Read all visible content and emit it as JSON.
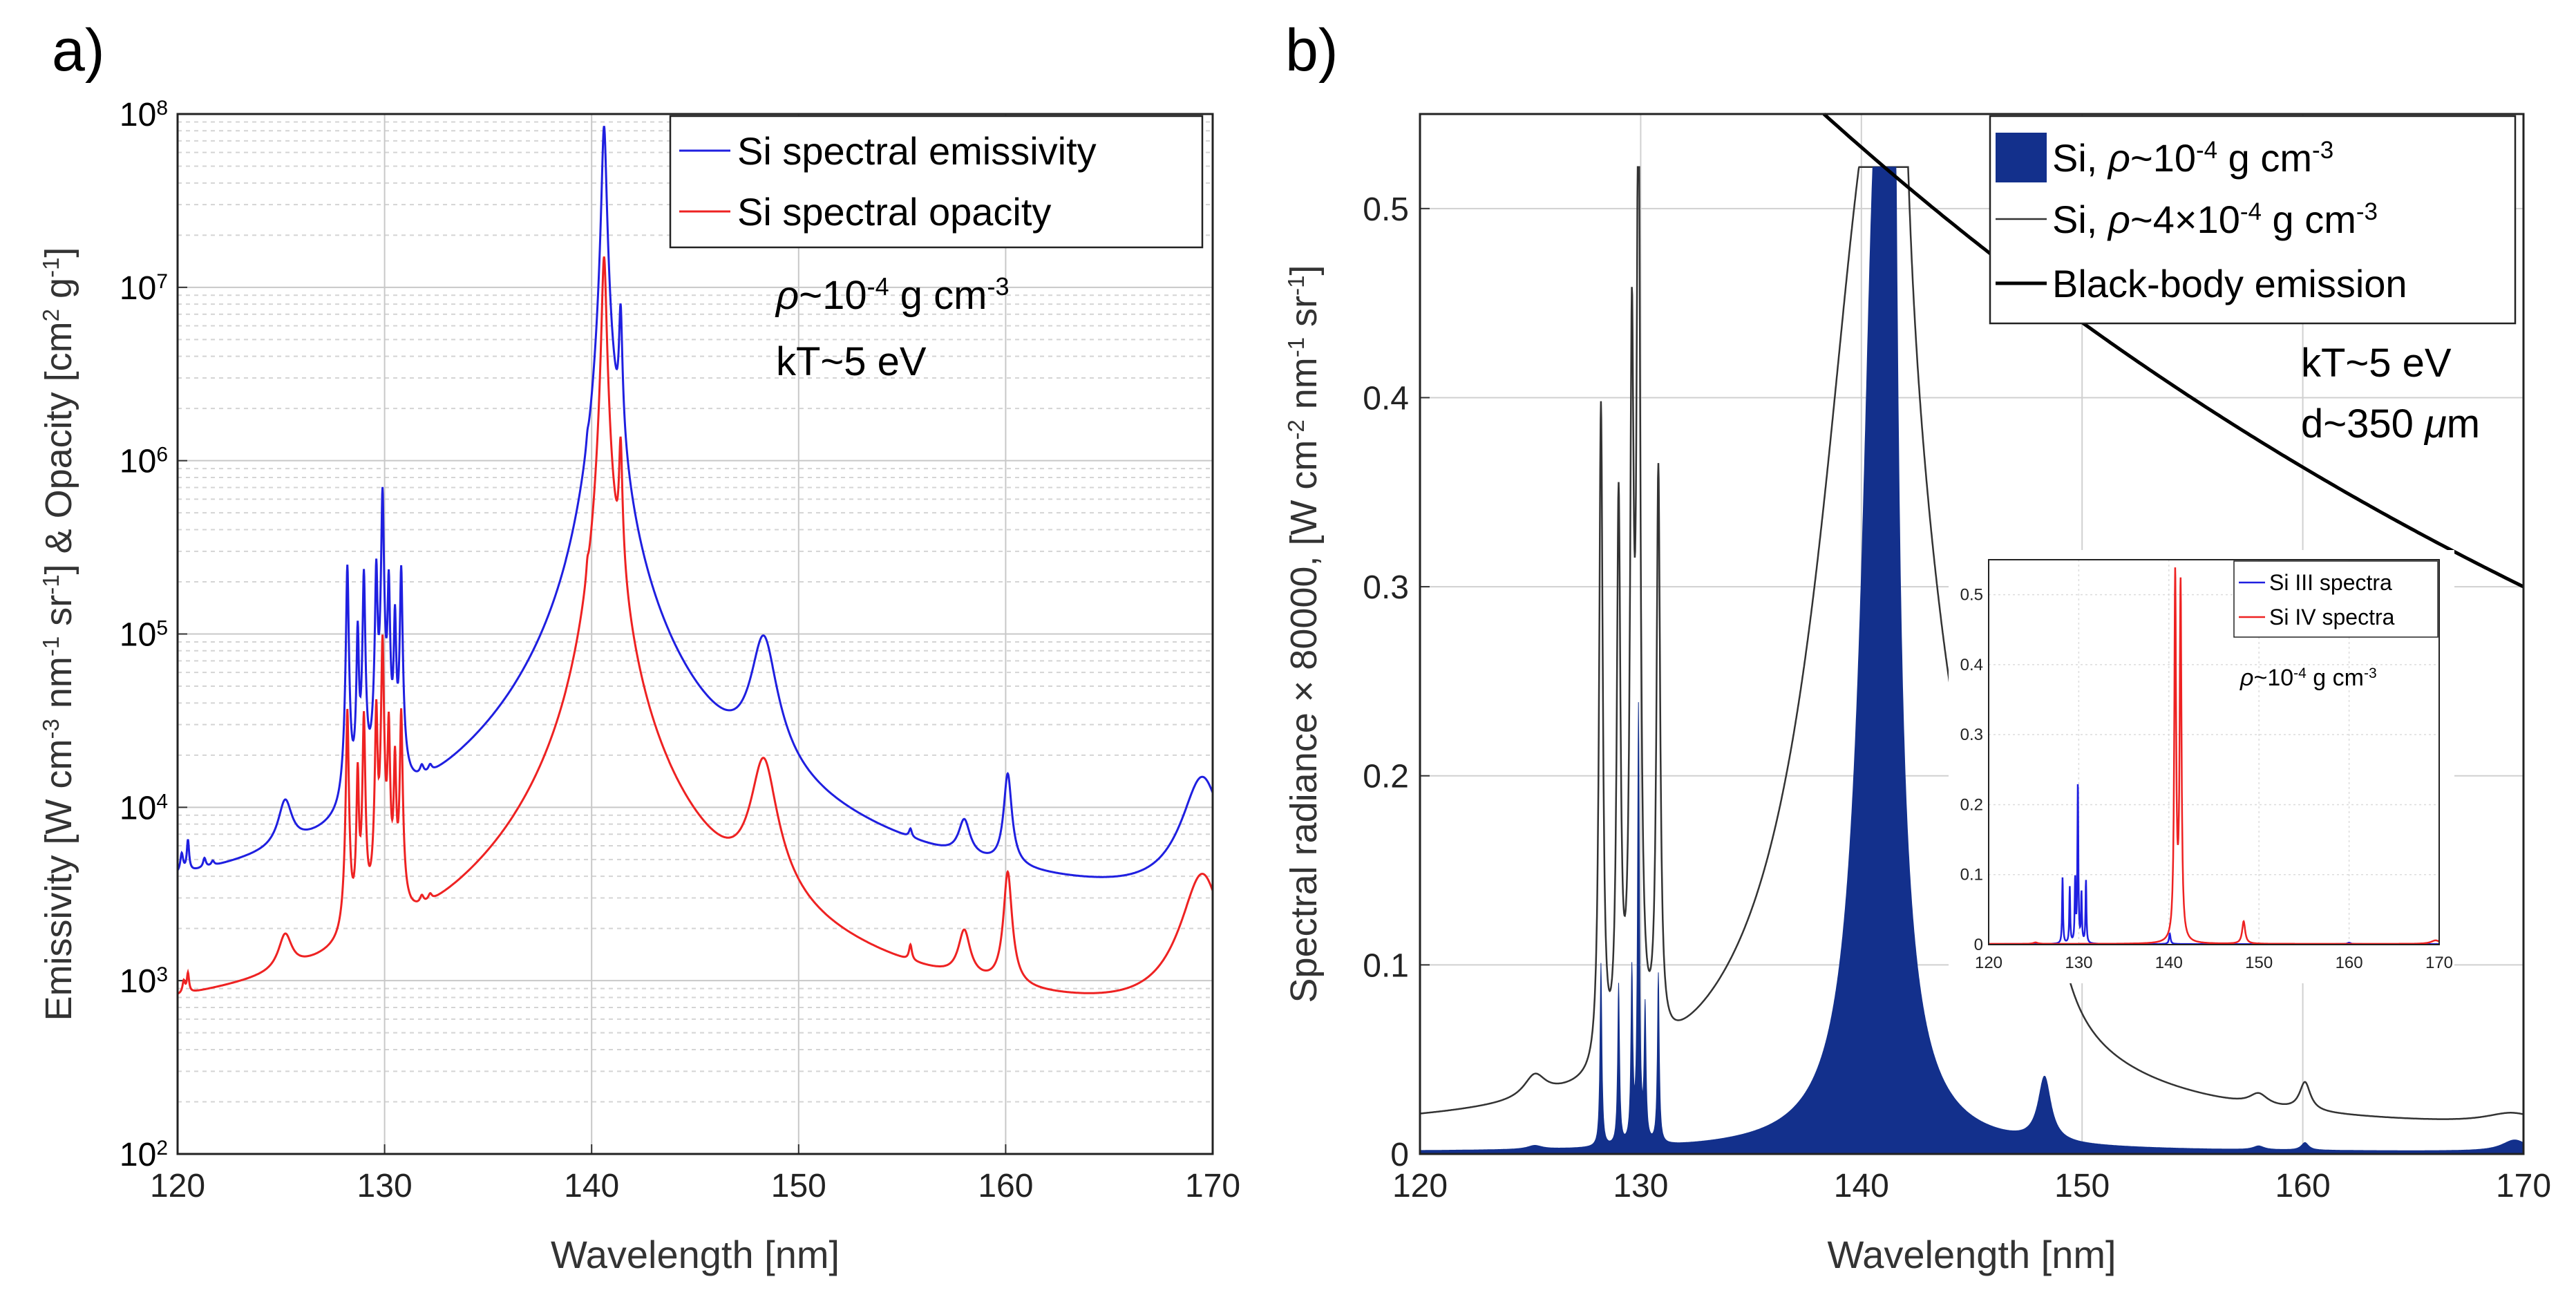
{
  "panels": {
    "a": {
      "label": "a)"
    },
    "b": {
      "label": "b)"
    }
  },
  "chart_data": [
    {
      "type": "line",
      "panel": "a",
      "yscale": "log",
      "xlabel": "Wavelength [nm]",
      "ylabel": {
        "main": "Emissivity [W cm",
        "parts": [
          {
            "t": "Emissivity [W cm"
          },
          {
            "t": "-3",
            "sup": true
          },
          {
            "t": " nm"
          },
          {
            "t": "-1",
            "sup": true
          },
          {
            "t": " sr"
          },
          {
            "t": "-1",
            "sup": true
          },
          {
            "t": "] & Opacity [cm"
          },
          {
            "t": "2",
            "sup": true
          },
          {
            "t": " g"
          },
          {
            "t": "-1",
            "sup": true
          },
          {
            "t": "]"
          }
        ]
      },
      "xlim": [
        120,
        170
      ],
      "ylim": [
        100,
        100000000
      ],
      "xticks": [
        120,
        130,
        140,
        150,
        160,
        170
      ],
      "yticks": [
        {
          "base": "10",
          "exp": "2",
          "value": 100
        },
        {
          "base": "10",
          "exp": "3",
          "value": 1000
        },
        {
          "base": "10",
          "exp": "4",
          "value": 10000
        },
        {
          "base": "10",
          "exp": "5",
          "value": 100000
        },
        {
          "base": "10",
          "exp": "6",
          "value": 1000000
        },
        {
          "base": "10",
          "exp": "7",
          "value": 10000000
        },
        {
          "base": "10",
          "exp": "8",
          "value": 100000000
        }
      ],
      "grid": true,
      "legend_position": "top-right",
      "annotation_lines": [
        [
          {
            "t": "ρ",
            "italic": true
          },
          {
            "t": "~10"
          },
          {
            "t": "-4",
            "sup": true
          },
          {
            "t": " g cm"
          },
          {
            "t": "-3",
            "sup": true
          }
        ],
        [
          {
            "t": "kT~5 eV"
          }
        ]
      ],
      "series": [
        {
          "name": "Si spectral emissivity",
          "color": "#1f1fe0",
          "background": 1800,
          "peaks": [
            {
              "x": 120.2,
              "amp": 1200,
              "w": 0.08
            },
            {
              "x": 120.5,
              "amp": 2200,
              "w": 0.06
            },
            {
              "x": 121.3,
              "amp": 600,
              "w": 0.08
            },
            {
              "x": 121.7,
              "amp": 300,
              "w": 0.08
            },
            {
              "x": 125.2,
              "amp": 5000,
              "w": 0.35
            },
            {
              "x": 128.2,
              "amp": 240000,
              "w": 0.05
            },
            {
              "x": 128.7,
              "amp": 100000,
              "w": 0.05
            },
            {
              "x": 129.0,
              "amp": 220000,
              "w": 0.05
            },
            {
              "x": 129.6,
              "amp": 240000,
              "w": 0.05
            },
            {
              "x": 129.9,
              "amp": 680000,
              "w": 0.05
            },
            {
              "x": 130.2,
              "amp": 200000,
              "w": 0.05
            },
            {
              "x": 130.5,
              "amp": 120000,
              "w": 0.05
            },
            {
              "x": 130.8,
              "amp": 230000,
              "w": 0.05
            },
            {
              "x": 131.8,
              "amp": 2000,
              "w": 0.1
            },
            {
              "x": 132.2,
              "amp": 1500,
              "w": 0.1
            },
            {
              "x": 139.8,
              "amp": 150000,
              "w": 0.06
            },
            {
              "x": 140.6,
              "amp": 85000000,
              "w": 0.1
            },
            {
              "x": 141.4,
              "amp": 6500000,
              "w": 0.07
            },
            {
              "x": 141.1,
              "amp": 400000,
              "w": 0.4
            },
            {
              "x": 148.3,
              "amp": 80000,
              "w": 0.55
            },
            {
              "x": 155.4,
              "amp": 800,
              "w": 0.08
            },
            {
              "x": 158.0,
              "amp": 3200,
              "w": 0.3
            },
            {
              "x": 160.1,
              "amp": 11000,
              "w": 0.18
            },
            {
              "x": 169.5,
              "amp": 12000,
              "w": 0.9
            }
          ]
        },
        {
          "name": "Si spectral opacity",
          "color": "#ee2222",
          "background": 420,
          "peaks": [
            {
              "x": 120.3,
              "amp": 150,
              "w": 0.07
            },
            {
              "x": 120.5,
              "amp": 250,
              "w": 0.06
            },
            {
              "x": 125.2,
              "amp": 700,
              "w": 0.35
            },
            {
              "x": 128.2,
              "amp": 35000,
              "w": 0.05
            },
            {
              "x": 128.7,
              "amp": 15000,
              "w": 0.05
            },
            {
              "x": 129.0,
              "amp": 33000,
              "w": 0.05
            },
            {
              "x": 129.6,
              "amp": 37000,
              "w": 0.05
            },
            {
              "x": 129.9,
              "amp": 95000,
              "w": 0.05
            },
            {
              "x": 130.2,
              "amp": 30000,
              "w": 0.05
            },
            {
              "x": 130.5,
              "amp": 18000,
              "w": 0.05
            },
            {
              "x": 130.8,
              "amp": 34000,
              "w": 0.05
            },
            {
              "x": 131.8,
              "amp": 300,
              "w": 0.1
            },
            {
              "x": 132.2,
              "amp": 250,
              "w": 0.1
            },
            {
              "x": 139.8,
              "amp": 40000,
              "w": 0.06
            },
            {
              "x": 140.6,
              "amp": 15000000,
              "w": 0.1
            },
            {
              "x": 141.4,
              "amp": 1100000,
              "w": 0.07
            },
            {
              "x": 141.1,
              "amp": 70000,
              "w": 0.4
            },
            {
              "x": 148.3,
              "amp": 16000,
              "w": 0.55
            },
            {
              "x": 155.4,
              "amp": 300,
              "w": 0.08
            },
            {
              "x": 158.0,
              "amp": 900,
              "w": 0.3
            },
            {
              "x": 160.1,
              "amp": 3300,
              "w": 0.18
            },
            {
              "x": 169.5,
              "amp": 3500,
              "w": 0.9
            }
          ]
        }
      ]
    },
    {
      "type": "area",
      "panel": "b",
      "xlabel": "Wavelength [nm]",
      "ylabel": {
        "parts": [
          {
            "t": "Spectral radiance × 80000, [W cm"
          },
          {
            "t": "-2",
            "sup": true
          },
          {
            "t": " nm"
          },
          {
            "t": "-1",
            "sup": true
          },
          {
            "t": " sr"
          },
          {
            "t": "-1",
            "sup": true
          },
          {
            "t": "]"
          }
        ]
      },
      "xlim": [
        120,
        170
      ],
      "ylim": [
        0,
        0.55
      ],
      "xticks": [
        120,
        130,
        140,
        150,
        160,
        170
      ],
      "yticks": [
        0,
        0.1,
        0.2,
        0.3,
        0.4,
        0.5
      ],
      "grid": true,
      "legend_position": "top-right",
      "annotation_lines": [
        [
          {
            "t": "kT~5 eV"
          }
        ],
        [
          {
            "t": "d~350 "
          },
          {
            "t": "μ",
            "italic": true
          },
          {
            "t": "m"
          }
        ]
      ],
      "series": [
        {
          "name_parts": [
            {
              "t": "Si, "
            },
            {
              "t": "ρ",
              "italic": true
            },
            {
              "t": "~10"
            },
            {
              "t": "-4",
              "sup": true
            },
            {
              "t": " g cm"
            },
            {
              "t": "-3",
              "sup": true
            }
          ],
          "style": "filled",
          "color": "#13308c",
          "background": 0.001,
          "peaks": [
            {
              "x": 125.2,
              "amp": 0.002,
              "w": 0.4
            },
            {
              "x": 128.2,
              "amp": 0.097,
              "w": 0.05
            },
            {
              "x": 129.0,
              "amp": 0.085,
              "w": 0.05
            },
            {
              "x": 129.6,
              "amp": 0.09,
              "w": 0.05
            },
            {
              "x": 129.9,
              "amp": 0.23,
              "w": 0.05
            },
            {
              "x": 130.2,
              "amp": 0.07,
              "w": 0.05
            },
            {
              "x": 130.8,
              "amp": 0.09,
              "w": 0.05
            },
            {
              "x": 140.7,
              "amp": 0.522,
              "w": 0.8,
              "sat": true
            },
            {
              "x": 141.4,
              "amp": 0.51,
              "w": 0.2
            },
            {
              "x": 148.3,
              "amp": 0.034,
              "w": 0.35
            },
            {
              "x": 158.0,
              "amp": 0.002,
              "w": 0.3
            },
            {
              "x": 160.1,
              "amp": 0.004,
              "w": 0.2
            },
            {
              "x": 169.6,
              "amp": 0.006,
              "w": 0.7
            }
          ]
        },
        {
          "name_parts": [
            {
              "t": "Si, "
            },
            {
              "t": "ρ",
              "italic": true
            },
            {
              "t": "~4×10"
            },
            {
              "t": "-4",
              "sup": true
            },
            {
              "t": " g cm"
            },
            {
              "t": "-3",
              "sup": true
            }
          ],
          "style": "thin-line",
          "color": "#333333",
          "background": 0.01,
          "peaks": [
            {
              "x": 125.2,
              "amp": 0.012,
              "w": 0.6
            },
            {
              "x": 128.2,
              "amp": 0.35,
              "w": 0.1
            },
            {
              "x": 129.0,
              "amp": 0.29,
              "w": 0.1
            },
            {
              "x": 129.6,
              "amp": 0.35,
              "w": 0.1
            },
            {
              "x": 129.9,
              "amp": 0.5,
              "w": 0.1
            },
            {
              "x": 130.8,
              "amp": 0.3,
              "w": 0.1
            },
            {
              "x": 140.6,
              "amp": 0.522,
              "w": 3.0,
              "sat": true
            },
            {
              "x": 141.5,
              "amp": 0.5,
              "w": 0.3
            },
            {
              "x": 148.3,
              "amp": 0.07,
              "w": 0.9
            },
            {
              "x": 158.0,
              "amp": 0.006,
              "w": 0.5
            },
            {
              "x": 160.1,
              "amp": 0.015,
              "w": 0.3
            },
            {
              "x": 169.5,
              "amp": 0.006,
              "w": 1.5
            }
          ]
        },
        {
          "name_parts": [
            {
              "t": "Black-body emission"
            }
          ],
          "style": "thick-line",
          "color": "#000000",
          "curve": {
            "x0": 138.3,
            "y0": 0.55,
            "x1": 170,
            "y1": 0.3
          }
        }
      ],
      "inset": {
        "xlim": [
          120,
          170
        ],
        "ylim": [
          0,
          0.55
        ],
        "xticks": [
          120,
          130,
          140,
          150,
          160,
          170
        ],
        "yticks": [
          0,
          0.1,
          0.2,
          0.3,
          0.4,
          0.5
        ],
        "annotation_parts": [
          {
            "t": "ρ",
            "italic": true
          },
          {
            "t": "~10"
          },
          {
            "t": "-4",
            "sup": true
          },
          {
            "t": " g cm"
          },
          {
            "t": "-3",
            "sup": true
          }
        ],
        "series": [
          {
            "name": "Si III spectra",
            "color": "#1f1fe0",
            "background": 0.0008,
            "peaks": [
              {
                "x": 128.2,
                "amp": 0.095,
                "w": 0.06
              },
              {
                "x": 129.0,
                "amp": 0.08,
                "w": 0.06
              },
              {
                "x": 129.6,
                "amp": 0.09,
                "w": 0.06
              },
              {
                "x": 129.9,
                "amp": 0.23,
                "w": 0.06
              },
              {
                "x": 130.3,
                "amp": 0.07,
                "w": 0.06
              },
              {
                "x": 130.8,
                "amp": 0.09,
                "w": 0.06
              },
              {
                "x": 140.1,
                "amp": 0.015,
                "w": 0.1
              },
              {
                "x": 160.0,
                "amp": 0.002,
                "w": 0.2
              }
            ]
          },
          {
            "name": "Si IV spectra",
            "color": "#ee2222",
            "background": 0.001,
            "peaks": [
              {
                "x": 125.2,
                "amp": 0.002,
                "w": 0.3
              },
              {
                "x": 140.7,
                "amp": 0.52,
                "w": 0.12
              },
              {
                "x": 141.3,
                "amp": 0.505,
                "w": 0.12
              },
              {
                "x": 148.3,
                "amp": 0.032,
                "w": 0.2
              },
              {
                "x": 169.6,
                "amp": 0.005,
                "w": 0.6
              }
            ]
          }
        ]
      }
    }
  ]
}
